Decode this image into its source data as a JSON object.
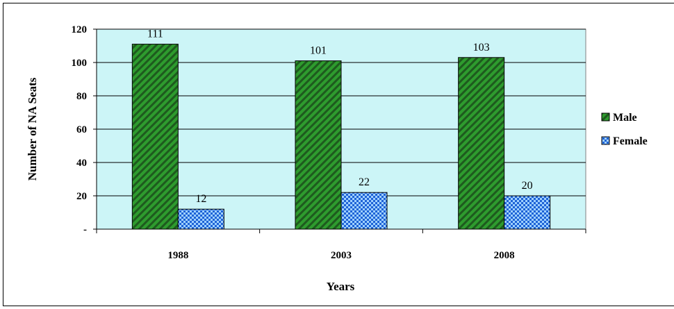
{
  "chart_data": {
    "type": "bar",
    "title": "",
    "xlabel": "Years",
    "ylabel": "Number of NA Seats",
    "categories": [
      "1988",
      "2003",
      "2008"
    ],
    "series": [
      {
        "name": "Male",
        "values": [
          111,
          101,
          103
        ],
        "color": "#2e9b2e",
        "hatch_color": "#1e5a1e",
        "pattern": "diagonal-hatch"
      },
      {
        "name": "Female",
        "values": [
          12,
          22,
          20
        ],
        "color": "#1e63d6",
        "hatch_color": "#9fd0ff",
        "pattern": "checker"
      }
    ],
    "data_labels": [
      [
        "111",
        "101",
        "103"
      ],
      [
        "12",
        "22",
        "20"
      ]
    ],
    "ylim": [
      0,
      120
    ],
    "yticks": [
      0,
      20,
      40,
      60,
      80,
      100,
      120
    ],
    "ytick_labels": [
      "-",
      "20",
      "40",
      "60",
      "80",
      "100",
      "120"
    ],
    "grid": true,
    "plot_background": "#ccf5f7",
    "legend_position": "right"
  }
}
